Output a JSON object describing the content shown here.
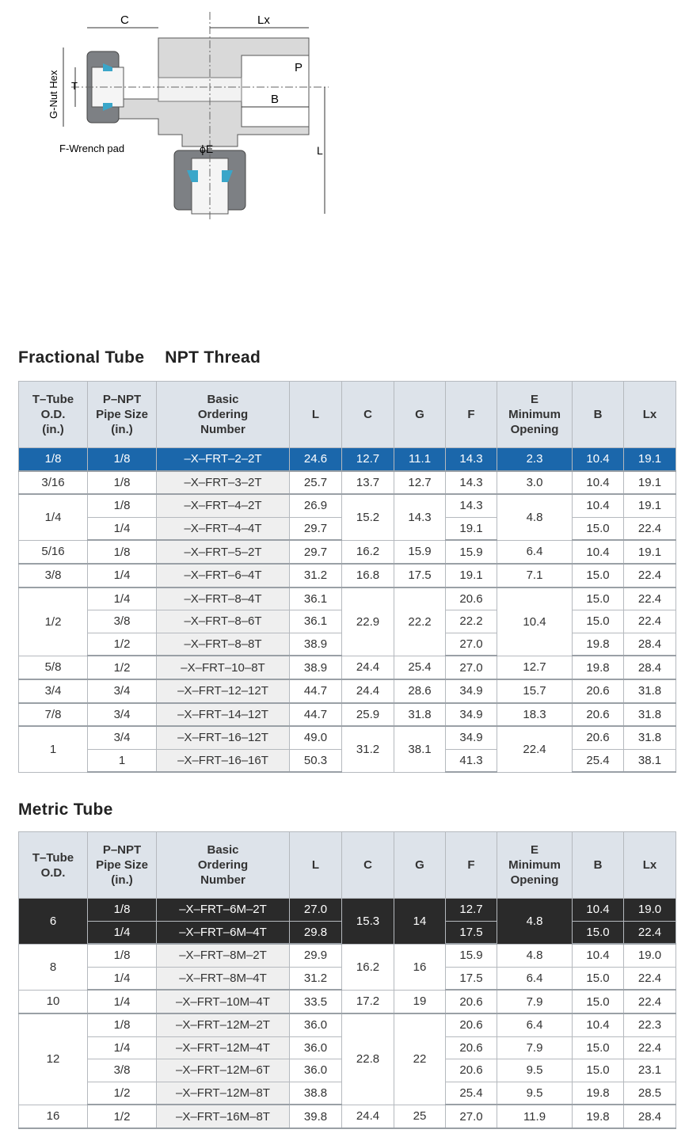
{
  "diagram": {
    "labels": {
      "C": "C",
      "Lx": "Lx",
      "P": "P",
      "B": "B",
      "G": "G-Nut Hex",
      "T": "T",
      "F": "F-Wrench pad",
      "E": "ϕE",
      "L": "L"
    },
    "colors": {
      "body": "#d9d9d9",
      "nut": "#7d8084",
      "ferrule": "#3aa6c9"
    }
  },
  "tables": [
    {
      "title_a": "Fractional Tube",
      "title_b": "NPT Thread",
      "headers": [
        "T–Tube\nO.D.\n(in.)",
        "P–NPT\nPipe Size\n(in.)",
        "Basic\nOrdering\nNumber",
        "L",
        "C",
        "G",
        "F",
        "E\nMinimum\nOpening",
        "B",
        "Lx"
      ],
      "highlight_color": "#1b67ab",
      "groups": [
        {
          "T": "1/8",
          "highlight": "blue",
          "rows": [
            {
              "P": "1/8",
              "N": "–X–FRT–2–2T",
              "L": "24.6",
              "C": "12.7",
              "G": "11.1",
              "F": "14.3",
              "E": "2.3",
              "B": "10.4",
              "Lx": "19.1"
            }
          ]
        },
        {
          "T": "3/16",
          "rows": [
            {
              "P": "1/8",
              "N": "–X–FRT–3–2T",
              "L": "25.7",
              "C": "13.7",
              "G": "12.7",
              "F": "14.3",
              "E": "3.0",
              "B": "10.4",
              "Lx": "19.1"
            }
          ]
        },
        {
          "T": "1/4",
          "C": "15.2",
          "G": "14.3",
          "E": "4.8",
          "rows": [
            {
              "P": "1/8",
              "N": "–X–FRT–4–2T",
              "L": "26.9",
              "F": "14.3",
              "B": "10.4",
              "Lx": "19.1"
            },
            {
              "P": "1/4",
              "N": "–X–FRT–4–4T",
              "L": "29.7",
              "F": "19.1",
              "B": "15.0",
              "Lx": "22.4"
            }
          ]
        },
        {
          "T": "5/16",
          "rows": [
            {
              "P": "1/8",
              "N": "–X–FRT–5–2T",
              "L": "29.7",
              "C": "16.2",
              "G": "15.9",
              "F": "15.9",
              "E": "6.4",
              "B": "10.4",
              "Lx": "19.1"
            }
          ]
        },
        {
          "T": "3/8",
          "rows": [
            {
              "P": "1/4",
              "N": "–X–FRT–6–4T",
              "L": "31.2",
              "C": "16.8",
              "G": "17.5",
              "F": "19.1",
              "E": "7.1",
              "B": "15.0",
              "Lx": "22.4"
            }
          ]
        },
        {
          "T": "1/2",
          "C": "22.9",
          "G": "22.2",
          "E": "10.4",
          "rows": [
            {
              "P": "1/4",
              "N": "–X–FRT–8–4T",
              "L": "36.1",
              "F": "20.6",
              "B": "15.0",
              "Lx": "22.4"
            },
            {
              "P": "3/8",
              "N": "–X–FRT–8–6T",
              "L": "36.1",
              "F": "22.2",
              "B": "15.0",
              "Lx": "22.4"
            },
            {
              "P": "1/2",
              "N": "–X–FRT–8–8T",
              "L": "38.9",
              "F": "27.0",
              "B": "19.8",
              "Lx": "28.4"
            }
          ]
        },
        {
          "T": "5/8",
          "rows": [
            {
              "P": "1/2",
              "N": "–X–FRT–10–8T",
              "L": "38.9",
              "C": "24.4",
              "G": "25.4",
              "F": "27.0",
              "E": "12.7",
              "B": "19.8",
              "Lx": "28.4"
            }
          ]
        },
        {
          "T": "3/4",
          "rows": [
            {
              "P": "3/4",
              "N": "–X–FRT–12–12T",
              "L": "44.7",
              "C": "24.4",
              "G": "28.6",
              "F": "34.9",
              "E": "15.7",
              "B": "20.6",
              "Lx": "31.8"
            }
          ]
        },
        {
          "T": "7/8",
          "rows": [
            {
              "P": "3/4",
              "N": "–X–FRT–14–12T",
              "L": "44.7",
              "C": "25.9",
              "G": "31.8",
              "F": "34.9",
              "E": "18.3",
              "B": "20.6",
              "Lx": "31.8"
            }
          ]
        },
        {
          "T": "1",
          "C": "31.2",
          "G": "38.1",
          "E": "22.4",
          "rows": [
            {
              "P": "3/4",
              "N": "–X–FRT–16–12T",
              "L": "49.0",
              "F": "34.9",
              "B": "20.6",
              "Lx": "31.8"
            },
            {
              "P": "1",
              "N": "–X–FRT–16–16T",
              "L": "50.3",
              "F": "41.3",
              "B": "25.4",
              "Lx": "38.1"
            }
          ]
        }
      ]
    },
    {
      "title_a": "Metric Tube",
      "title_b": "",
      "headers": [
        "T–Tube\nO.D.",
        "P–NPT\nPipe Size\n(in.)",
        "Basic\nOrdering\nNumber",
        "L",
        "C",
        "G",
        "F",
        "E\nMinimum\nOpening",
        "B",
        "Lx"
      ],
      "highlight_color": "#2a2a2a",
      "groups": [
        {
          "T": "6",
          "highlight": "dark",
          "C": "15.3",
          "G": "14",
          "E": "4.8",
          "rows": [
            {
              "P": "1/8",
              "N": "–X–FRT–6M–2T",
              "L": "27.0",
              "F": "12.7",
              "B": "10.4",
              "Lx": "19.0"
            },
            {
              "P": "1/4",
              "N": "–X–FRT–6M–4T",
              "L": "29.8",
              "F": "17.5",
              "B": "15.0",
              "Lx": "22.4"
            }
          ]
        },
        {
          "T": "8",
          "C": "16.2",
          "G": "16",
          "rows": [
            {
              "P": "1/8",
              "N": "–X–FRT–8M–2T",
              "L": "29.9",
              "F": "15.9",
              "E": "4.8",
              "B": "10.4",
              "Lx": "19.0"
            },
            {
              "P": "1/4",
              "N": "–X–FRT–8M–4T",
              "L": "31.2",
              "F": "17.5",
              "E": "6.4",
              "B": "15.0",
              "Lx": "22.4"
            }
          ]
        },
        {
          "T": "10",
          "rows": [
            {
              "P": "1/4",
              "N": "–X–FRT–10M–4T",
              "L": "33.5",
              "C": "17.2",
              "G": "19",
              "F": "20.6",
              "E": "7.9",
              "B": "15.0",
              "Lx": "22.4"
            }
          ]
        },
        {
          "T": "12",
          "C": "22.8",
          "G": "22",
          "rows": [
            {
              "P": "1/8",
              "N": "–X–FRT–12M–2T",
              "L": "36.0",
              "F": "20.6",
              "E": "6.4",
              "B": "10.4",
              "Lx": "22.3"
            },
            {
              "P": "1/4",
              "N": "–X–FRT–12M–4T",
              "L": "36.0",
              "F": "20.6",
              "E": "7.9",
              "B": "15.0",
              "Lx": "22.4"
            },
            {
              "P": "3/8",
              "N": "–X–FRT–12M–6T",
              "L": "36.0",
              "F": "20.6",
              "E": "9.5",
              "B": "15.0",
              "Lx": "23.1"
            },
            {
              "P": "1/2",
              "N": "–X–FRT–12M–8T",
              "L": "38.8",
              "F": "25.4",
              "E": "9.5",
              "B": "19.8",
              "Lx": "28.5"
            }
          ]
        },
        {
          "T": "16",
          "rows": [
            {
              "P": "1/2",
              "N": "–X–FRT–16M–8T",
              "L": "39.8",
              "C": "24.4",
              "G": "25",
              "F": "27.0",
              "E": "11.9",
              "B": "19.8",
              "Lx": "28.4"
            }
          ]
        }
      ]
    }
  ]
}
